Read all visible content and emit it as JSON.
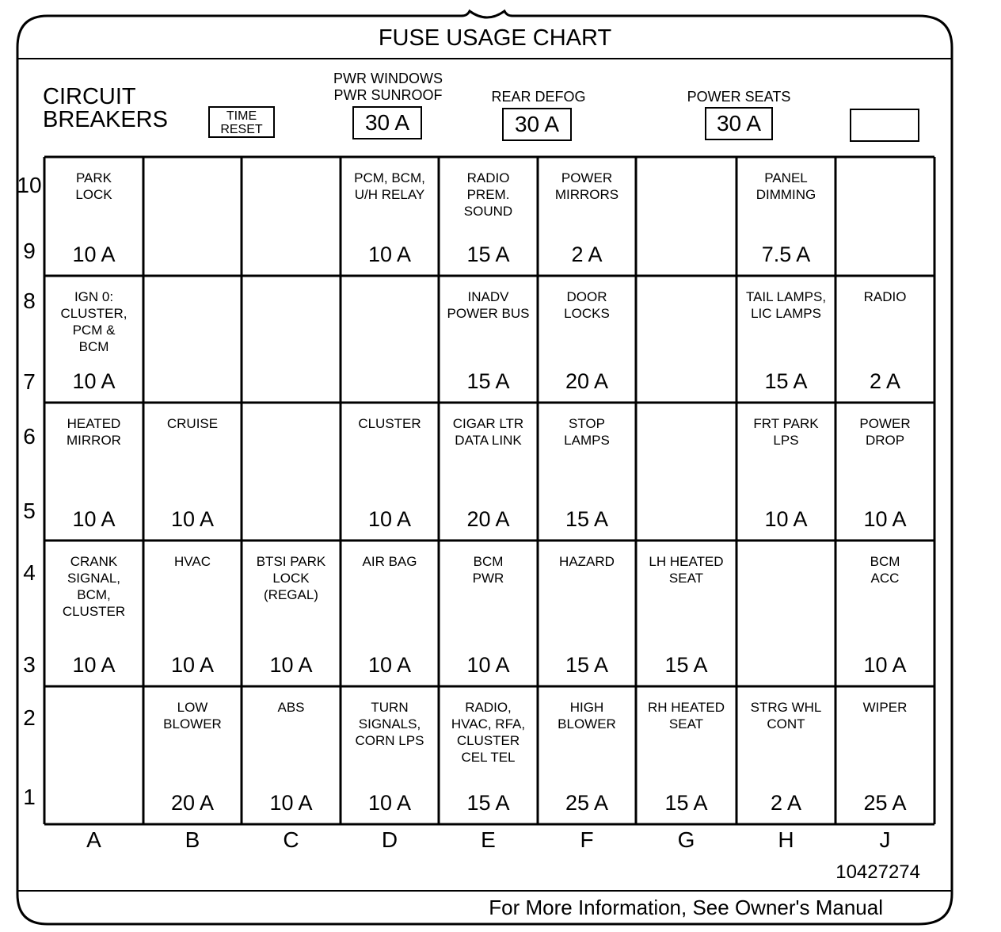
{
  "title": "FUSE USAGE CHART",
  "circuit_breakers": {
    "label": "CIRCUIT\nBREAKERS",
    "time_reset": "TIME\nRESET",
    "breakers": [
      {
        "label": "PWR WINDOWS\nPWR SUNROOF",
        "rating": "30 A"
      },
      {
        "label": "REAR DEFOG",
        "rating": "30 A"
      },
      {
        "label": "POWER SEATS",
        "rating": "30 A"
      },
      {
        "label": "",
        "rating": ""
      }
    ]
  },
  "row_numbers": [
    "10",
    "9",
    "8",
    "7",
    "6",
    "5",
    "4",
    "3",
    "2",
    "1"
  ],
  "columns": [
    "A",
    "B",
    "C",
    "D",
    "E",
    "F",
    "G",
    "H",
    "J"
  ],
  "fuse_rows": [
    [
      {
        "name": "PARK\nLOCK",
        "amp": "10 A"
      },
      {
        "name": "",
        "amp": ""
      },
      {
        "name": "",
        "amp": ""
      },
      {
        "name": "PCM, BCM,\nU/H RELAY",
        "amp": "10 A"
      },
      {
        "name": "RADIO\nPREM.\nSOUND",
        "amp": "15 A"
      },
      {
        "name": "POWER\nMIRRORS",
        "amp": "2 A"
      },
      {
        "name": "",
        "amp": ""
      },
      {
        "name": "PANEL\nDIMMING",
        "amp": "7.5 A"
      },
      {
        "name": "",
        "amp": ""
      }
    ],
    [
      {
        "name": "IGN 0:\nCLUSTER,\nPCM &\nBCM",
        "amp": "10 A"
      },
      {
        "name": "",
        "amp": ""
      },
      {
        "name": "",
        "amp": ""
      },
      {
        "name": "",
        "amp": ""
      },
      {
        "name": "INADV\nPOWER BUS",
        "amp": "15 A"
      },
      {
        "name": "DOOR\nLOCKS",
        "amp": "20 A"
      },
      {
        "name": "",
        "amp": ""
      },
      {
        "name": "TAIL LAMPS,\nLIC LAMPS",
        "amp": "15 A"
      },
      {
        "name": "RADIO",
        "amp": "2 A"
      }
    ],
    [
      {
        "name": "HEATED\nMIRROR",
        "amp": "10 A"
      },
      {
        "name": "CRUISE",
        "amp": "10 A"
      },
      {
        "name": "",
        "amp": ""
      },
      {
        "name": "CLUSTER",
        "amp": "10 A"
      },
      {
        "name": "CIGAR LTR\nDATA LINK",
        "amp": "20 A"
      },
      {
        "name": "STOP\nLAMPS",
        "amp": "15 A"
      },
      {
        "name": "",
        "amp": ""
      },
      {
        "name": "FRT PARK\nLPS",
        "amp": "10 A"
      },
      {
        "name": "POWER\nDROP",
        "amp": "10 A"
      }
    ],
    [
      {
        "name": "CRANK\nSIGNAL,\nBCM,\nCLUSTER",
        "amp": "10 A"
      },
      {
        "name": "HVAC",
        "amp": "10 A"
      },
      {
        "name": "BTSI PARK\nLOCK\n(REGAL)",
        "amp": "10 A"
      },
      {
        "name": "AIR BAG",
        "amp": "10 A"
      },
      {
        "name": "BCM\nPWR",
        "amp": "10 A"
      },
      {
        "name": "HAZARD",
        "amp": "15 A"
      },
      {
        "name": "LH HEATED\nSEAT",
        "amp": "15 A"
      },
      {
        "name": "",
        "amp": ""
      },
      {
        "name": "BCM\nACC",
        "amp": "10 A"
      }
    ],
    [
      {
        "name": "",
        "amp": ""
      },
      {
        "name": "LOW\nBLOWER",
        "amp": "20 A"
      },
      {
        "name": "ABS",
        "amp": "10 A"
      },
      {
        "name": "TURN\nSIGNALS,\nCORN LPS",
        "amp": "10 A"
      },
      {
        "name": "RADIO,\nHVAC, RFA,\nCLUSTER\nCEL TEL",
        "amp": "15 A"
      },
      {
        "name": "HIGH\nBLOWER",
        "amp": "25 A"
      },
      {
        "name": "RH HEATED\nSEAT",
        "amp": "15 A"
      },
      {
        "name": "STRG WHL\nCONT",
        "amp": "2 A"
      },
      {
        "name": "WIPER",
        "amp": "25 A"
      }
    ]
  ],
  "part_number": "10427274",
  "footer": "For More Information, See Owner's Manual"
}
